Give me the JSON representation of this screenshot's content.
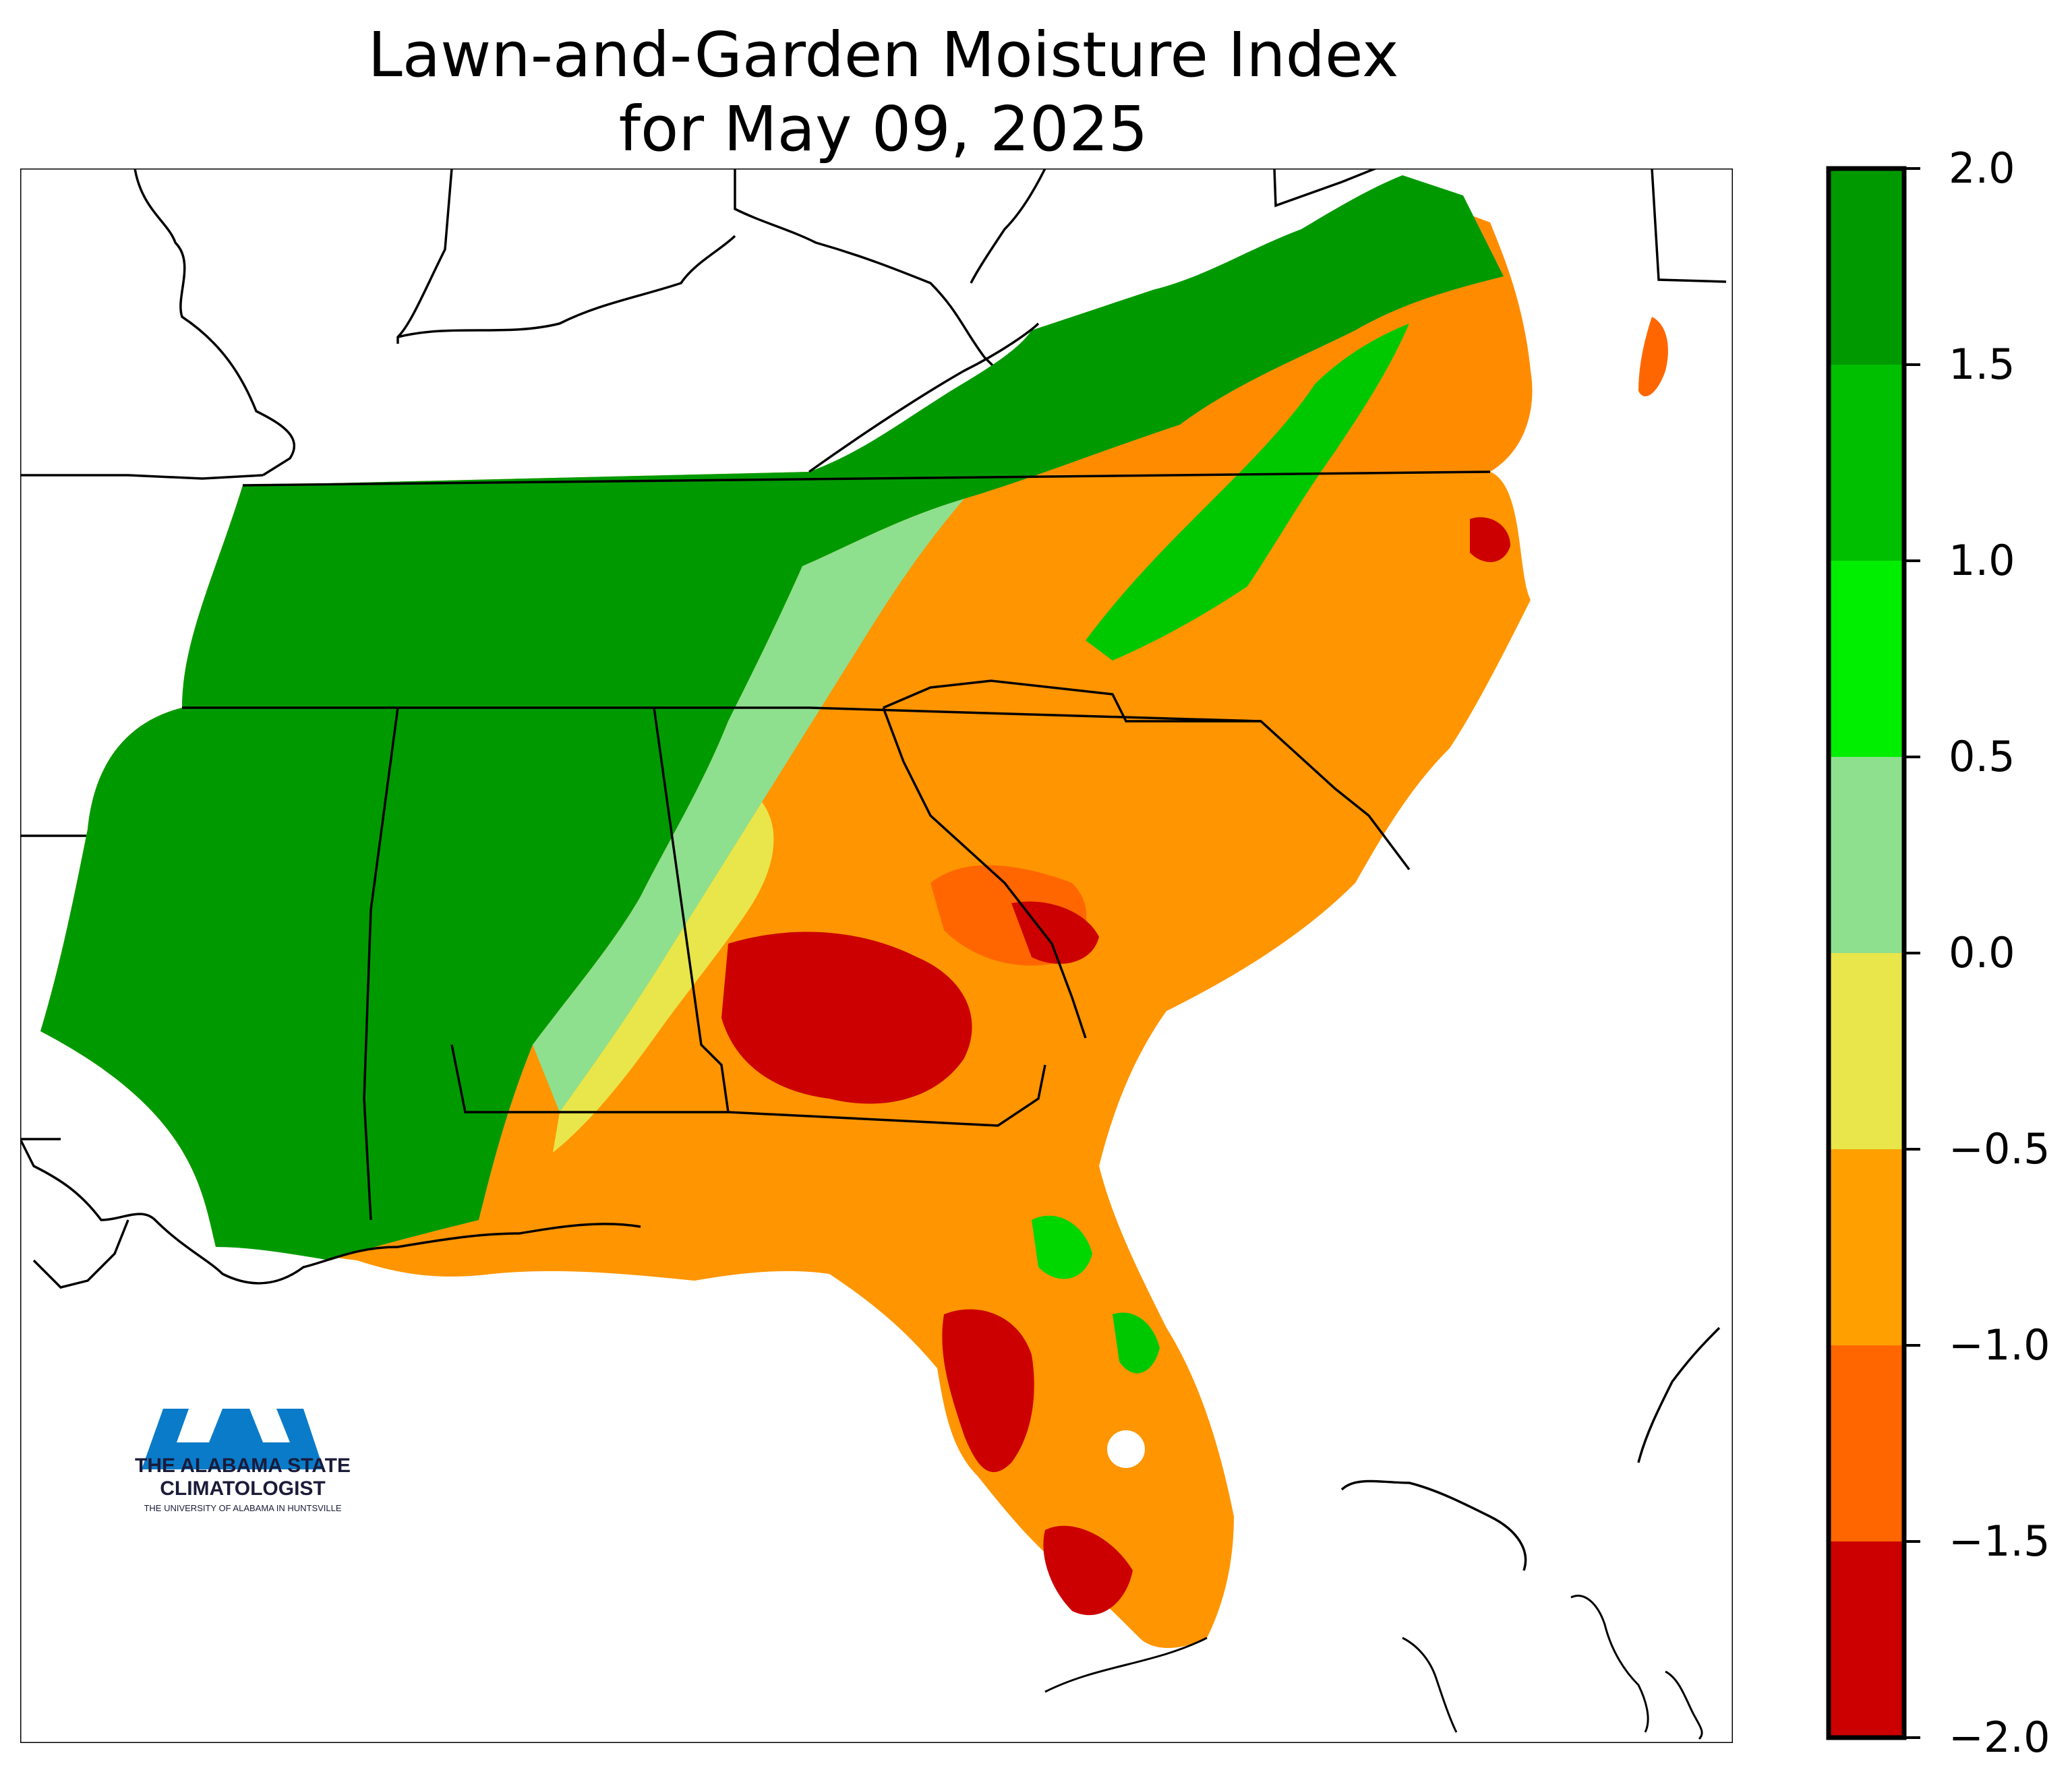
{
  "title": {
    "line1": "Lawn-and-Garden Moisture Index",
    "line2": "for May 09, 2025"
  },
  "colorbar": {
    "ticks": [
      "2.0",
      "1.5",
      "1.0",
      "0.5",
      "0.0",
      "−0.5",
      "−1.0",
      "−1.5",
      "−2.0"
    ],
    "bands": [
      {
        "from": 1.5,
        "to": 2.0,
        "color": "#009a00"
      },
      {
        "from": 1.0,
        "to": 1.5,
        "color": "#00bf00"
      },
      {
        "from": 0.5,
        "to": 1.0,
        "color": "#00ee00"
      },
      {
        "from": 0.0,
        "to": 0.5,
        "color": "#8ee08e"
      },
      {
        "from": -0.5,
        "to": 0.0,
        "color": "#e8e64a"
      },
      {
        "from": -1.0,
        "to": -0.5,
        "color": "#ffa000"
      },
      {
        "from": -1.5,
        "to": -1.0,
        "color": "#ff6600"
      },
      {
        "from": -2.0,
        "to": -1.5,
        "color": "#cc0000"
      }
    ]
  },
  "logo": {
    "mark": "UAH",
    "line1": "THE ALABAMA STATE",
    "line2": "CLIMATOLOGIST",
    "line3": "THE UNIVERSITY OF ALABAMA IN HUNTSVILLE",
    "color": "#0a7bc9"
  },
  "map": {
    "region": "Southeastern United States",
    "regions_shown": [
      "Mississippi",
      "Alabama",
      "Tennessee",
      "Georgia",
      "Florida",
      "South Carolina",
      "North Carolina",
      "Virginia"
    ]
  }
}
